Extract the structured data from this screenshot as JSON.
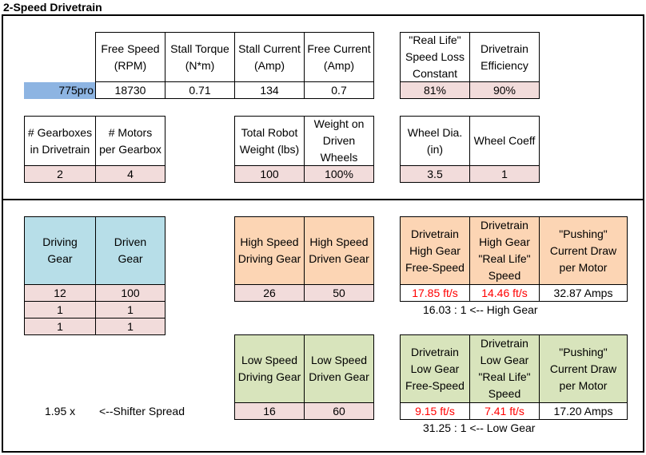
{
  "title": "2-Speed Drivetrain",
  "motor": {
    "name": "775pro",
    "headers": [
      "Free Speed\n(RPM)",
      "Stall Torque\n(N*m)",
      "Stall Current\n(Amp)",
      "Free Current\n(Amp)"
    ],
    "values": [
      "18730",
      "0.71",
      "134",
      "0.7"
    ]
  },
  "loss": {
    "headers": [
      "\"Real Life\"\nSpeed Loss\nConstant",
      "Drivetrain\nEfficiency"
    ],
    "values": [
      "81%",
      "90%"
    ]
  },
  "gearboxes": {
    "headers": [
      "# Gearboxes\nin Drivetrain",
      "# Motors\nper Gearbox"
    ],
    "values": [
      "2",
      "4"
    ]
  },
  "weight": {
    "headers": [
      "Total Robot\nWeight (lbs)",
      "Weight on\nDriven\nWheels"
    ],
    "values": [
      "100",
      "100%"
    ]
  },
  "wheel": {
    "headers": [
      "Wheel Dia.\n(in)",
      "Wheel Coeff"
    ],
    "values": [
      "3.5",
      "1"
    ]
  },
  "stages": {
    "headers": [
      "Driving\nGear",
      "Driven\nGear"
    ],
    "rows": [
      [
        "12",
        "100"
      ],
      [
        "1",
        "1"
      ],
      [
        "1",
        "1"
      ]
    ]
  },
  "high": {
    "headers": [
      "High Speed\nDriving Gear",
      "High Speed\nDriven Gear"
    ],
    "values": [
      "26",
      "50"
    ],
    "out_headers": [
      "Drivetrain\nHigh Gear\nFree-Speed",
      "Drivetrain\nHigh Gear\n\"Real Life\"\nSpeed",
      "\"Pushing\"\nCurrent Draw\nper Motor"
    ],
    "out_values": [
      "17.85 ft/s",
      "14.46 ft/s",
      "32.87 Amps"
    ],
    "ratio": "16.03 : 1 <-- High Gear"
  },
  "low": {
    "headers": [
      "Low Speed\nDriving Gear",
      "Low Speed\nDriven Gear"
    ],
    "values": [
      "16",
      "60"
    ],
    "out_headers": [
      "Drivetrain\nLow Gear\nFree-Speed",
      "Drivetrain\nLow Gear\n\"Real Life\"\nSpeed",
      "\"Pushing\"\nCurrent Draw\nper Motor"
    ],
    "out_values": [
      "9.15 ft/s",
      "7.41 ft/s",
      "17.20 Amps"
    ],
    "ratio": "31.25 : 1 <-- Low Gear"
  },
  "spread": {
    "value": "1.95 x",
    "label": "<--Shifter Spread"
  },
  "colors": {
    "input_fill": "#f2dcdb",
    "stage_fill": "#b7dee8",
    "high_fill": "#fcd5b4",
    "low_fill": "#d8e4bc",
    "selected_fill": "#8db4e2",
    "warn_text": "#ff0000"
  }
}
